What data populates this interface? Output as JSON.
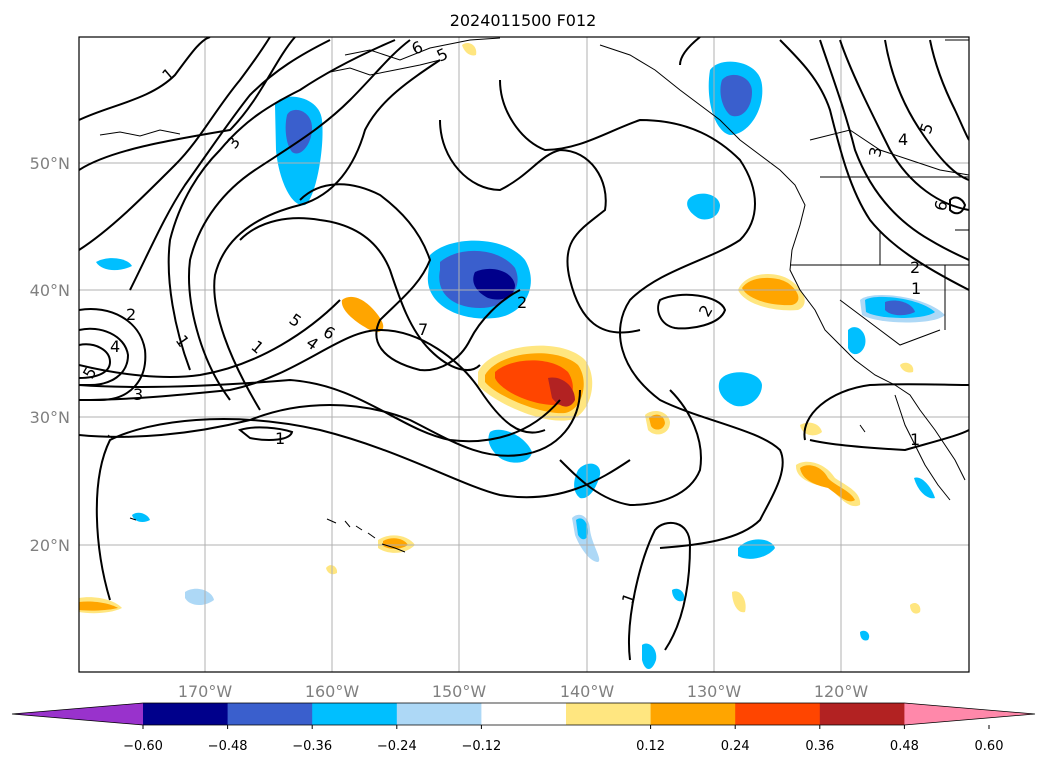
{
  "title": "2024011500 F012",
  "map": {
    "lat_labels": [
      "50°N",
      "40°N",
      "30°N",
      "20°N"
    ],
    "lon_labels": [
      "170°W",
      "160°W",
      "150°W",
      "140°W",
      "130°W",
      "120°W"
    ],
    "contour_labels": [
      "1",
      "3",
      "2",
      "4",
      "5",
      "1",
      "1",
      "3",
      "5",
      "6",
      "4",
      "1",
      "7",
      "2",
      "2",
      "5",
      "6",
      "3",
      "4",
      "5",
      "6",
      "2",
      "1",
      "1",
      "1"
    ],
    "grid": true
  },
  "colorbar": {
    "ticks": [
      "−0.60",
      "−0.48",
      "−0.36",
      "−0.24",
      "−0.12",
      "0.12",
      "0.24",
      "0.36",
      "0.48",
      "0.60"
    ],
    "colors": [
      "#9932cc",
      "#00008b",
      "#3a5fcd",
      "#00bfff",
      "#add8f6",
      "#ffffff",
      "#ffe680",
      "#ffa500",
      "#ff4500",
      "#b22222",
      "#ff88aa"
    ]
  }
}
